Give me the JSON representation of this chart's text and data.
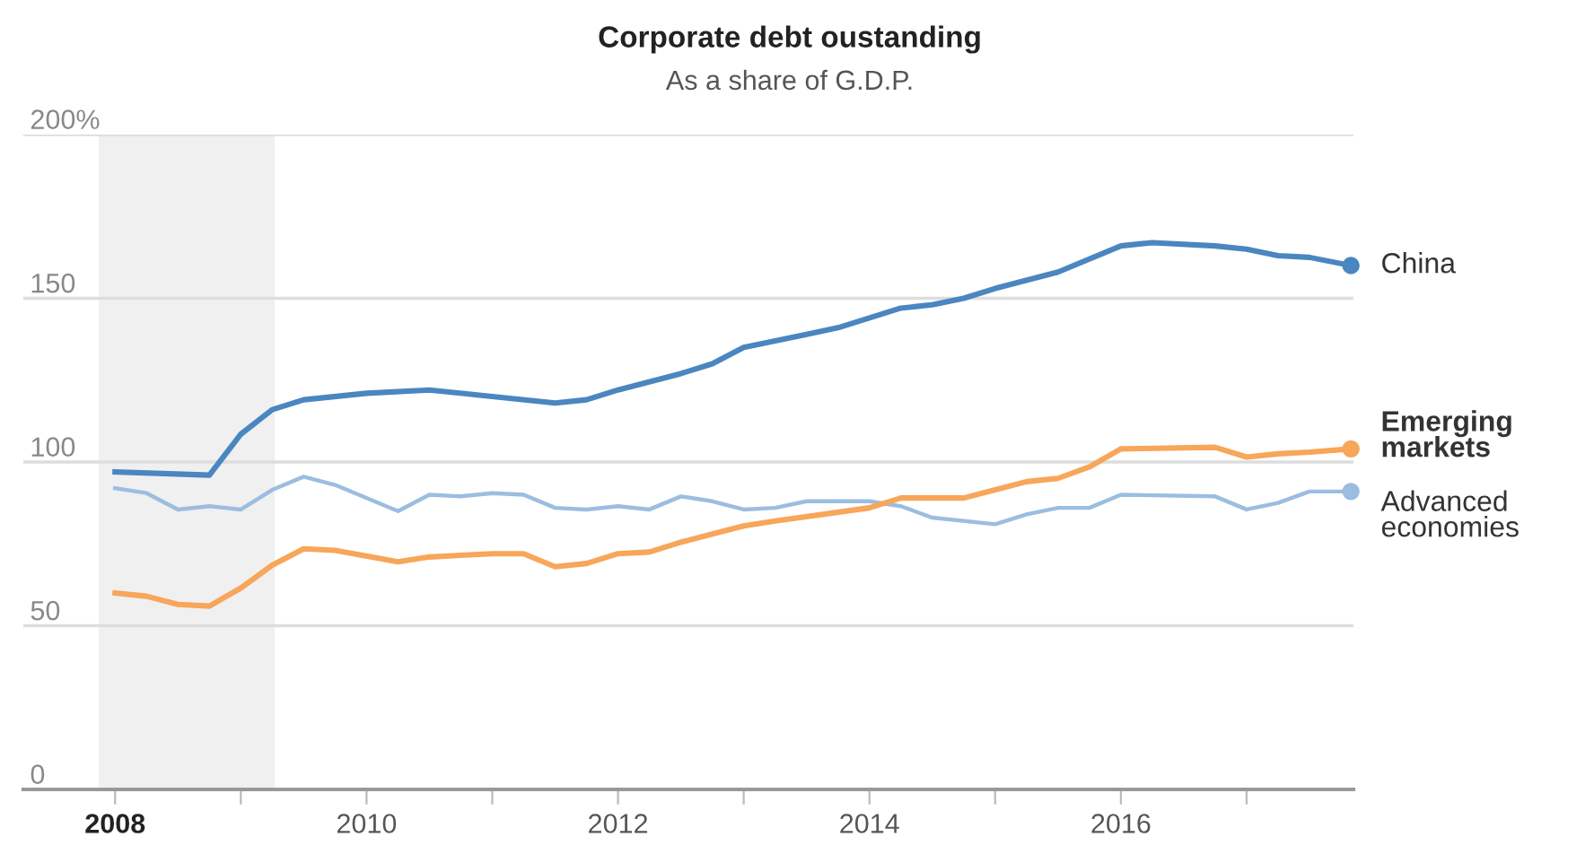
{
  "chart_data": {
    "type": "line",
    "title": "Corporate debt oustanding",
    "subtitle": "As a share of G.D.P.",
    "xlim": [
      2007.27,
      2017.85
    ],
    "ylim": [
      0,
      200
    ],
    "xticks": [
      2008,
      {
        "value": 2009,
        "label": null
      },
      2010,
      {
        "value": 2011,
        "label": null
      },
      2012,
      {
        "value": 2013,
        "label": null
      },
      2014,
      {
        "value": 2015,
        "label": null
      },
      2016,
      {
        "value": 2017,
        "label": null
      }
    ],
    "yticks": [
      0,
      50,
      100,
      150,
      {
        "value": 200,
        "label": "200%"
      }
    ],
    "grid": "y",
    "legend": false,
    "line_style": "solid",
    "bands": [
      {
        "axis": "x",
        "from": 2007.87,
        "to": 2009.27,
        "label": null,
        "color": "#f0f0f0"
      }
    ],
    "series": [
      {
        "name": "China",
        "color": "#4a86c0",
        "x": [
          2008,
          2008.75,
          2009,
          2009.25,
          2009.5,
          2010,
          2010.5,
          2011,
          2011.5,
          2011.75,
          2012,
          2012.5,
          2012.75,
          2013,
          2013.5,
          2013.75,
          2014,
          2014.25,
          2014.5,
          2014.75,
          2015,
          2015.5,
          2016,
          2016.25,
          2016.75,
          2017,
          2017.25,
          2017.5,
          2017.83
        ],
        "values": [
          97,
          96,
          108.5,
          116,
          119,
          121,
          122,
          120,
          118,
          119,
          122,
          127,
          130,
          135,
          139,
          141,
          144,
          147,
          148,
          150,
          153,
          158,
          166,
          167,
          166,
          165,
          163,
          162.5,
          160
        ]
      },
      {
        "name": "Emerging markets",
        "color": "#f7a65a",
        "x": [
          2008,
          2008.25,
          2008.5,
          2008.75,
          2009,
          2009.25,
          2009.5,
          2009.75,
          2010.25,
          2010.5,
          2011,
          2011.25,
          2011.5,
          2011.75,
          2012,
          2012.25,
          2012.5,
          2012.75,
          2013,
          2013.25,
          2014,
          2014.25,
          2014.75,
          2015,
          2015.25,
          2015.5,
          2015.75,
          2016,
          2016.75,
          2017,
          2017.25,
          2017.5,
          2017.83
        ],
        "values": [
          60,
          59,
          56.5,
          56,
          61.5,
          68.5,
          73.5,
          73,
          69.5,
          71,
          72,
          72,
          68,
          69,
          72,
          72.5,
          75.5,
          78,
          80.5,
          82,
          86,
          89,
          89,
          91.5,
          94,
          95,
          98.5,
          104,
          104.5,
          101.5,
          102.5,
          103,
          104
        ]
      },
      {
        "name": "Advanced economies",
        "color": "#9bbde0",
        "x": [
          2008,
          2008.25,
          2008.5,
          2008.75,
          2009,
          2009.25,
          2009.5,
          2009.75,
          2010.25,
          2010.5,
          2010.75,
          2011,
          2011.25,
          2011.5,
          2011.75,
          2012,
          2012.25,
          2012.5,
          2012.75,
          2013,
          2013.25,
          2013.5,
          2014,
          2014.25,
          2014.5,
          2015,
          2015.25,
          2015.5,
          2015.75,
          2016,
          2016.75,
          2017,
          2017.25,
          2017.5,
          2017.83
        ],
        "values": [
          92,
          90.5,
          85.5,
          86.5,
          85.5,
          91.5,
          95.5,
          93,
          85,
          90,
          89.5,
          90.5,
          90,
          86,
          85.5,
          86.5,
          85.5,
          89.5,
          88,
          85.5,
          86,
          88,
          88,
          86.5,
          83,
          81,
          84,
          86,
          86,
          90,
          89.5,
          85.5,
          87.5,
          91,
          91
        ]
      }
    ]
  }
}
